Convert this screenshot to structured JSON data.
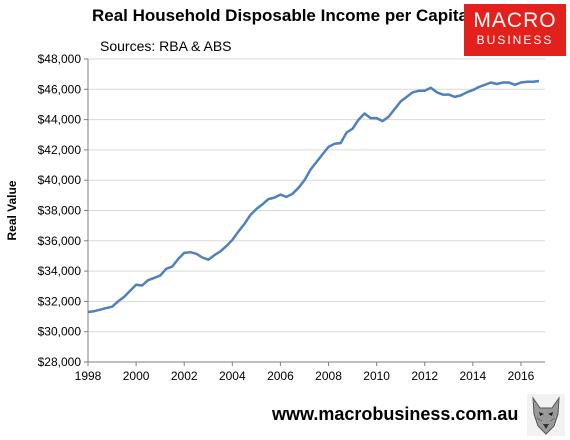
{
  "header": {
    "title": "Real Household Disposable Income per Capita",
    "subtitle": "Sources: RBA & ABS"
  },
  "logo": {
    "line1": "MACRO",
    "line2": "BUSINESS",
    "color": "#e2211c"
  },
  "footer": {
    "url": "www.macrobusiness.com.au"
  },
  "chart_data": {
    "type": "line",
    "ylabel": "Real Value",
    "xlim": [
      1998,
      2017
    ],
    "ylim": [
      28000,
      48000
    ],
    "x_ticks": [
      1998,
      2000,
      2002,
      2004,
      2006,
      2008,
      2010,
      2012,
      2014,
      2016
    ],
    "y_ticks": [
      {
        "value": 28000,
        "label": "$28,000"
      },
      {
        "value": 30000,
        "label": "$30,000"
      },
      {
        "value": 32000,
        "label": "$32,000"
      },
      {
        "value": 34000,
        "label": "$34,000"
      },
      {
        "value": 36000,
        "label": "$36,000"
      },
      {
        "value": 38000,
        "label": "$38,000"
      },
      {
        "value": 40000,
        "label": "$40,000"
      },
      {
        "value": 42000,
        "label": "$42,000"
      },
      {
        "value": 44000,
        "label": "$44,000"
      },
      {
        "value": 46000,
        "label": "$46,000"
      },
      {
        "value": 48000,
        "label": "$48,000"
      }
    ],
    "line_color": "#4f81bd",
    "series": [
      {
        "values": [
          [
            1998.0,
            31300
          ],
          [
            1998.25,
            31350
          ],
          [
            1998.5,
            31450
          ],
          [
            1998.75,
            31550
          ],
          [
            1999.0,
            31650
          ],
          [
            1999.25,
            32000
          ],
          [
            1999.5,
            32300
          ],
          [
            1999.75,
            32700
          ],
          [
            2000.0,
            33100
          ],
          [
            2000.25,
            33050
          ],
          [
            2000.5,
            33400
          ],
          [
            2000.75,
            33550
          ],
          [
            2001.0,
            33700
          ],
          [
            2001.25,
            34150
          ],
          [
            2001.5,
            34300
          ],
          [
            2001.75,
            34800
          ],
          [
            2002.0,
            35200
          ],
          [
            2002.25,
            35250
          ],
          [
            2002.5,
            35150
          ],
          [
            2002.75,
            34900
          ],
          [
            2003.0,
            34750
          ],
          [
            2003.25,
            35050
          ],
          [
            2003.5,
            35300
          ],
          [
            2003.75,
            35650
          ],
          [
            2004.0,
            36050
          ],
          [
            2004.25,
            36600
          ],
          [
            2004.5,
            37100
          ],
          [
            2004.75,
            37700
          ],
          [
            2005.0,
            38100
          ],
          [
            2005.25,
            38400
          ],
          [
            2005.5,
            38750
          ],
          [
            2005.75,
            38850
          ],
          [
            2006.0,
            39050
          ],
          [
            2006.25,
            38900
          ],
          [
            2006.5,
            39100
          ],
          [
            2006.75,
            39500
          ],
          [
            2007.0,
            40000
          ],
          [
            2007.25,
            40700
          ],
          [
            2007.5,
            41200
          ],
          [
            2007.75,
            41700
          ],
          [
            2008.0,
            42200
          ],
          [
            2008.25,
            42400
          ],
          [
            2008.5,
            42450
          ],
          [
            2008.75,
            43150
          ],
          [
            2009.0,
            43400
          ],
          [
            2009.25,
            44000
          ],
          [
            2009.5,
            44400
          ],
          [
            2009.75,
            44100
          ],
          [
            2010.0,
            44100
          ],
          [
            2010.25,
            43900
          ],
          [
            2010.5,
            44200
          ],
          [
            2010.75,
            44700
          ],
          [
            2011.0,
            45200
          ],
          [
            2011.25,
            45500
          ],
          [
            2011.5,
            45800
          ],
          [
            2011.75,
            45900
          ],
          [
            2012.0,
            45900
          ],
          [
            2012.25,
            46100
          ],
          [
            2012.5,
            45800
          ],
          [
            2012.75,
            45650
          ],
          [
            2013.0,
            45650
          ],
          [
            2013.25,
            45500
          ],
          [
            2013.5,
            45600
          ],
          [
            2013.75,
            45800
          ],
          [
            2014.0,
            45950
          ],
          [
            2014.25,
            46150
          ],
          [
            2014.5,
            46300
          ],
          [
            2014.75,
            46450
          ],
          [
            2015.0,
            46350
          ],
          [
            2015.25,
            46450
          ],
          [
            2015.5,
            46450
          ],
          [
            2015.75,
            46300
          ],
          [
            2016.0,
            46450
          ],
          [
            2016.25,
            46500
          ],
          [
            2016.5,
            46500
          ],
          [
            2016.75,
            46550
          ]
        ]
      }
    ]
  }
}
